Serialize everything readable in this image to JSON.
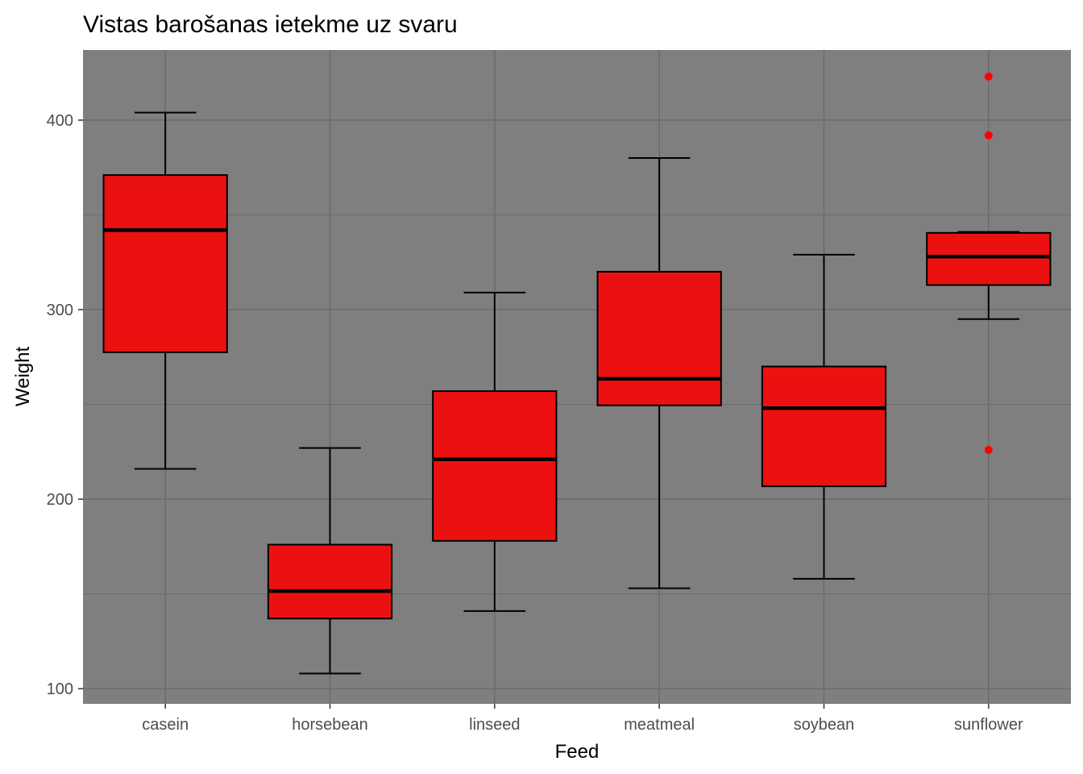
{
  "chart_data": {
    "type": "boxplot",
    "title": "Vistas barošanas ietekme uz svaru",
    "xlabel": "Feed",
    "ylabel": "Weight",
    "ylim": [
      92,
      437
    ],
    "yticks": [
      100,
      200,
      300,
      400
    ],
    "minor_yticks": [
      150,
      250,
      350
    ],
    "grid": true,
    "colors": {
      "panel": "#7f7f7f",
      "grid": "#6b6b6b",
      "box_fill": "#f20c0c",
      "outline": "#000000",
      "outlier": "#ff0000"
    },
    "categories": [
      "casein",
      "horsebean",
      "linseed",
      "meatmeal",
      "soybean",
      "sunflower"
    ],
    "boxes": [
      {
        "category": "casein",
        "whisker_low": 216,
        "q1": 277.5,
        "median": 342,
        "q3": 371,
        "whisker_high": 404,
        "outliers": []
      },
      {
        "category": "horsebean",
        "whisker_low": 108,
        "q1": 137,
        "median": 151.5,
        "q3": 176,
        "whisker_high": 227,
        "outliers": []
      },
      {
        "category": "linseed",
        "whisker_low": 141,
        "q1": 178,
        "median": 221,
        "q3": 257,
        "whisker_high": 309,
        "outliers": []
      },
      {
        "category": "meatmeal",
        "whisker_low": 153,
        "q1": 249.5,
        "median": 263.5,
        "q3": 320,
        "whisker_high": 380,
        "outliers": []
      },
      {
        "category": "soybean",
        "whisker_low": 158,
        "q1": 206.8,
        "median": 248,
        "q3": 270,
        "whisker_high": 329,
        "outliers": []
      },
      {
        "category": "sunflower",
        "whisker_low": 295,
        "q1": 313,
        "median": 328,
        "q3": 340.5,
        "whisker_high": 341,
        "outliers": [
          423,
          392,
          226
        ]
      }
    ]
  }
}
